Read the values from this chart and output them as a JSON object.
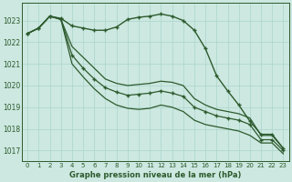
{
  "title": "Graphe pression niveau de la mer (hPa)",
  "background_color": "#cce8e0",
  "grid_color": "#aad4cc",
  "line_color": "#2d5a2d",
  "ylim": [
    1016.5,
    1023.8
  ],
  "yticks": [
    1017,
    1018,
    1019,
    1020,
    1021,
    1022,
    1023
  ],
  "x_labels": [
    "0",
    "1",
    "2",
    "3",
    "4",
    "5",
    "6",
    "7",
    "8",
    "9",
    "10",
    "11",
    "12",
    "13",
    "14",
    "15",
    "16",
    "17",
    "18",
    "19",
    "20",
    "21",
    "22",
    "23"
  ],
  "series": [
    {
      "data": [
        1022.4,
        1022.65,
        1023.2,
        1023.1,
        1022.75,
        1022.65,
        1022.55,
        1022.55,
        1022.7,
        1023.05,
        1023.15,
        1023.2,
        1023.3,
        1023.2,
        1023.0,
        1022.55,
        1021.7,
        1020.45,
        1019.75,
        1019.1,
        1018.35,
        1017.75,
        1017.75,
        1017.1
      ],
      "marker": true,
      "lw": 1.0
    },
    {
      "data": [
        1022.4,
        1022.65,
        1023.2,
        1023.05,
        1021.8,
        1021.3,
        1020.8,
        1020.3,
        1020.1,
        1020.0,
        1020.05,
        1020.1,
        1020.2,
        1020.15,
        1020.0,
        1019.4,
        1019.1,
        1018.9,
        1018.8,
        1018.7,
        1018.5,
        1017.7,
        1017.7,
        1017.1
      ],
      "marker": false,
      "lw": 0.9
    },
    {
      "data": [
        1022.4,
        1022.65,
        1023.2,
        1023.05,
        1021.4,
        1020.8,
        1020.3,
        1019.9,
        1019.7,
        1019.55,
        1019.6,
        1019.65,
        1019.75,
        1019.65,
        1019.5,
        1019.0,
        1018.8,
        1018.6,
        1018.5,
        1018.4,
        1018.2,
        1017.5,
        1017.5,
        1017.0
      ],
      "marker": true,
      "lw": 0.9
    },
    {
      "data": [
        1022.4,
        1022.65,
        1023.2,
        1023.05,
        1021.0,
        1020.4,
        1019.85,
        1019.4,
        1019.1,
        1018.95,
        1018.9,
        1018.95,
        1019.1,
        1019.0,
        1018.8,
        1018.4,
        1018.2,
        1018.1,
        1018.0,
        1017.9,
        1017.7,
        1017.35,
        1017.35,
        1016.85
      ],
      "marker": false,
      "lw": 0.9
    }
  ]
}
